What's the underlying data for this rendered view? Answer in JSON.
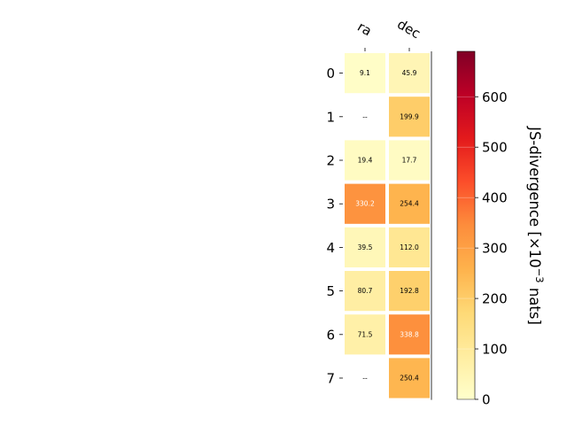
{
  "chart_data": {
    "type": "heatmap",
    "title": "",
    "x_categories": [
      "ra",
      "dec"
    ],
    "y_categories": [
      "0",
      "1",
      "2",
      "3",
      "4",
      "5",
      "6",
      "7"
    ],
    "values": [
      [
        9.1,
        45.9
      ],
      [
        null,
        199.9
      ],
      [
        19.4,
        17.7
      ],
      [
        330.2,
        254.4
      ],
      [
        39.5,
        112.0
      ],
      [
        80.7,
        192.8
      ],
      [
        71.5,
        338.8
      ],
      [
        null,
        250.4
      ]
    ],
    "missing_label": "--",
    "colorbar": {
      "label": "JS-divergence [×10",
      "exponent": "−3",
      "unit_suffix": " nats]",
      "range": [
        0,
        690
      ],
      "ticks": [
        "0",
        "100",
        "200",
        "300",
        "400",
        "500",
        "600"
      ],
      "colormap": "YlOrRd"
    },
    "colors": {
      "ylorrd": [
        "#ffffcc",
        "#ffeda0",
        "#fed976",
        "#feb24c",
        "#fd8d3c",
        "#fc4e2a",
        "#e31a1c",
        "#bd0026",
        "#800026"
      ]
    }
  }
}
